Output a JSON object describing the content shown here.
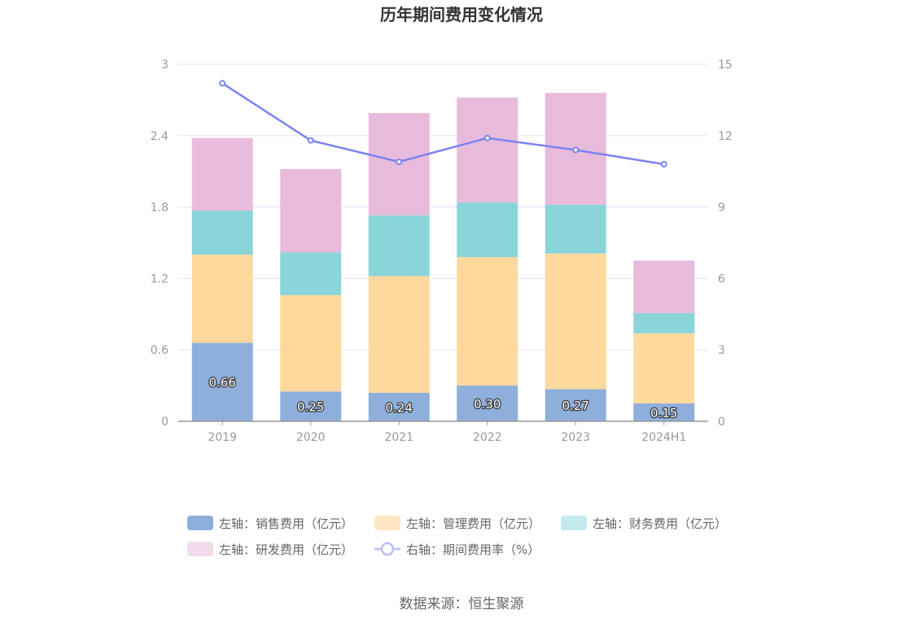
{
  "chart_data": {
    "type": "bar",
    "stacked": true,
    "title": "历年期间费用变化情况",
    "categories": [
      "2019",
      "2020",
      "2021",
      "2022",
      "2023",
      "2024H1"
    ],
    "left_axis": {
      "ylim": [
        0,
        3
      ],
      "ticks": [
        "0",
        "0.6",
        "1.2",
        "1.8",
        "2.4",
        "3"
      ]
    },
    "right_axis": {
      "ylim": [
        0,
        15
      ],
      "ticks": [
        "0",
        "3",
        "6",
        "9",
        "12",
        "15"
      ]
    },
    "series": [
      {
        "name": "左轴：销售费用（亿元）",
        "axis": "left",
        "type": "bar",
        "color": "#8eafdb",
        "legend_color": "#8eafdb",
        "values": [
          0.66,
          0.25,
          0.24,
          0.3,
          0.27,
          0.15
        ],
        "labels": [
          "0.66",
          "0.25",
          "0.24",
          "0.30",
          "0.27",
          "0.15"
        ]
      },
      {
        "name": "左轴：管理费用（亿元）",
        "axis": "left",
        "type": "bar",
        "color": "#fed99e",
        "legend_color": "#fee6c2",
        "values": [
          0.74,
          0.81,
          0.98,
          1.08,
          1.14,
          0.59
        ]
      },
      {
        "name": "左轴：财务费用（亿元）",
        "axis": "left",
        "type": "bar",
        "color": "#89d5da",
        "legend_color": "#c3eaed",
        "values": [
          0.37,
          0.36,
          0.51,
          0.46,
          0.41,
          0.17
        ]
      },
      {
        "name": "左轴：研发费用（亿元）",
        "axis": "left",
        "type": "bar",
        "color": "#e8bbdc",
        "legend_color": "#f2dbeb",
        "values": [
          0.61,
          0.7,
          0.86,
          0.88,
          0.94,
          0.44
        ]
      },
      {
        "name": "右轴：期间费用率（%）",
        "axis": "right",
        "type": "line",
        "color": "#7b83ef",
        "legend_color": "#b9bdf6",
        "values": [
          14.2,
          11.8,
          10.9,
          11.9,
          11.4,
          10.8
        ]
      }
    ]
  },
  "source_text": "数据来源：恒生聚源"
}
